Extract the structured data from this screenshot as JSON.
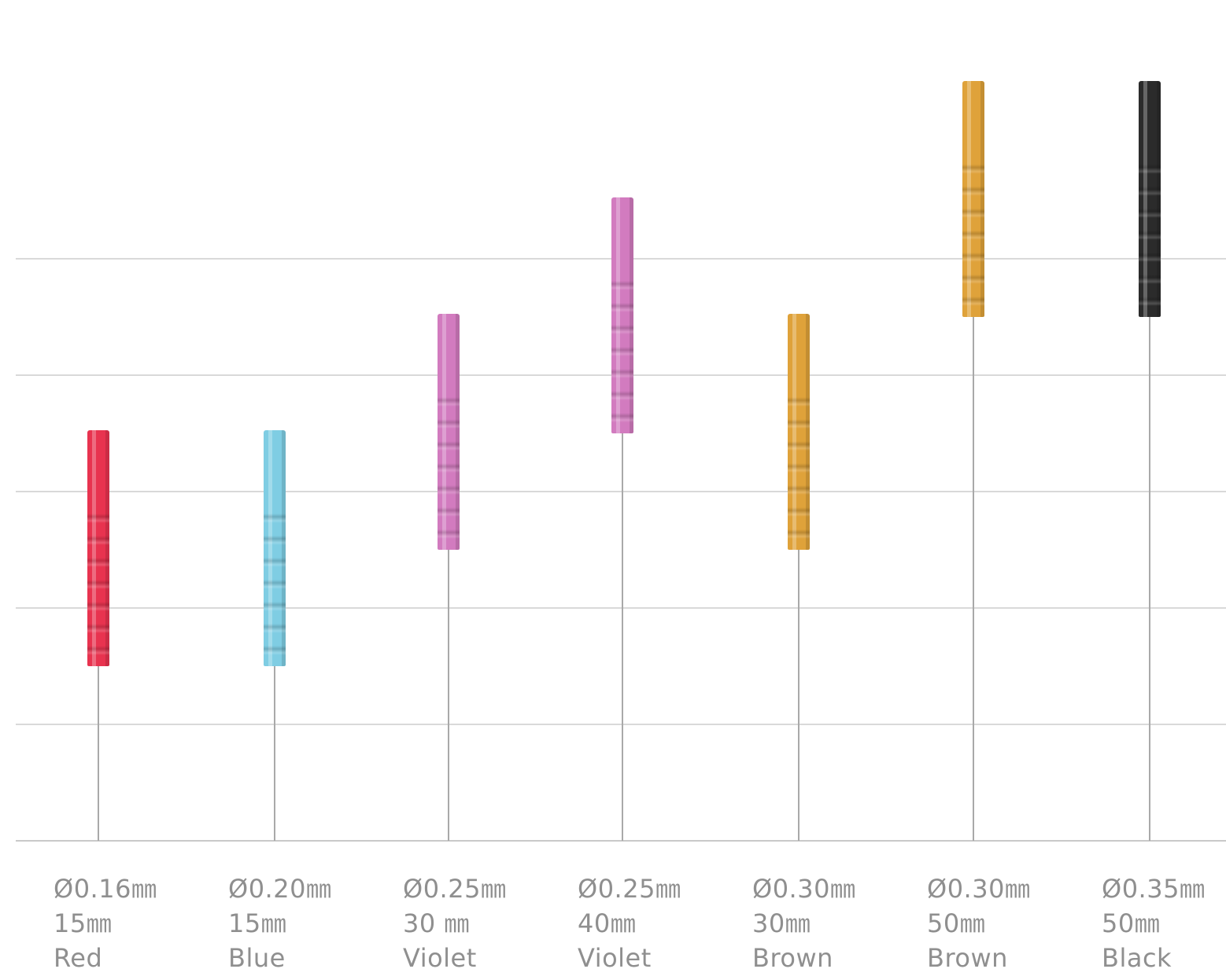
{
  "needles": [
    {
      "diameter": "Ø0.16㎜",
      "length": "15㎜",
      "color_name": "Red",
      "handle_color": "#e8334f",
      "length_mm": 15,
      "level": 1
    },
    {
      "diameter": "Ø0.20㎜",
      "length": "15㎜",
      "color_name": "Blue",
      "handle_color": "#7fcde3",
      "length_mm": 15,
      "level": 1
    },
    {
      "diameter": "Ø0.25㎜",
      "length": "30 ㎜",
      "color_name": "Violet",
      "handle_color": "#d27bbf",
      "length_mm": 30,
      "level": 2
    },
    {
      "diameter": "Ø0.25㎜",
      "length": "40㎜",
      "color_name": "Violet",
      "handle_color": "#d27bbf",
      "length_mm": 40,
      "level": 3
    },
    {
      "diameter": "Ø0.30㎜",
      "length": "30㎜",
      "color_name": "Brown",
      "handle_color": "#dfa23a",
      "length_mm": 30,
      "level": 2
    },
    {
      "diameter": "Ø0.30㎜",
      "length": "50㎜",
      "color_name": "Brown",
      "handle_color": "#dfa23a",
      "length_mm": 50,
      "level": 4
    },
    {
      "diameter": "Ø0.35㎜",
      "length": "50㎜",
      "color_name": "Black",
      "handle_color": "#2b2b2b",
      "length_mm": 50,
      "level": 4
    }
  ]
}
